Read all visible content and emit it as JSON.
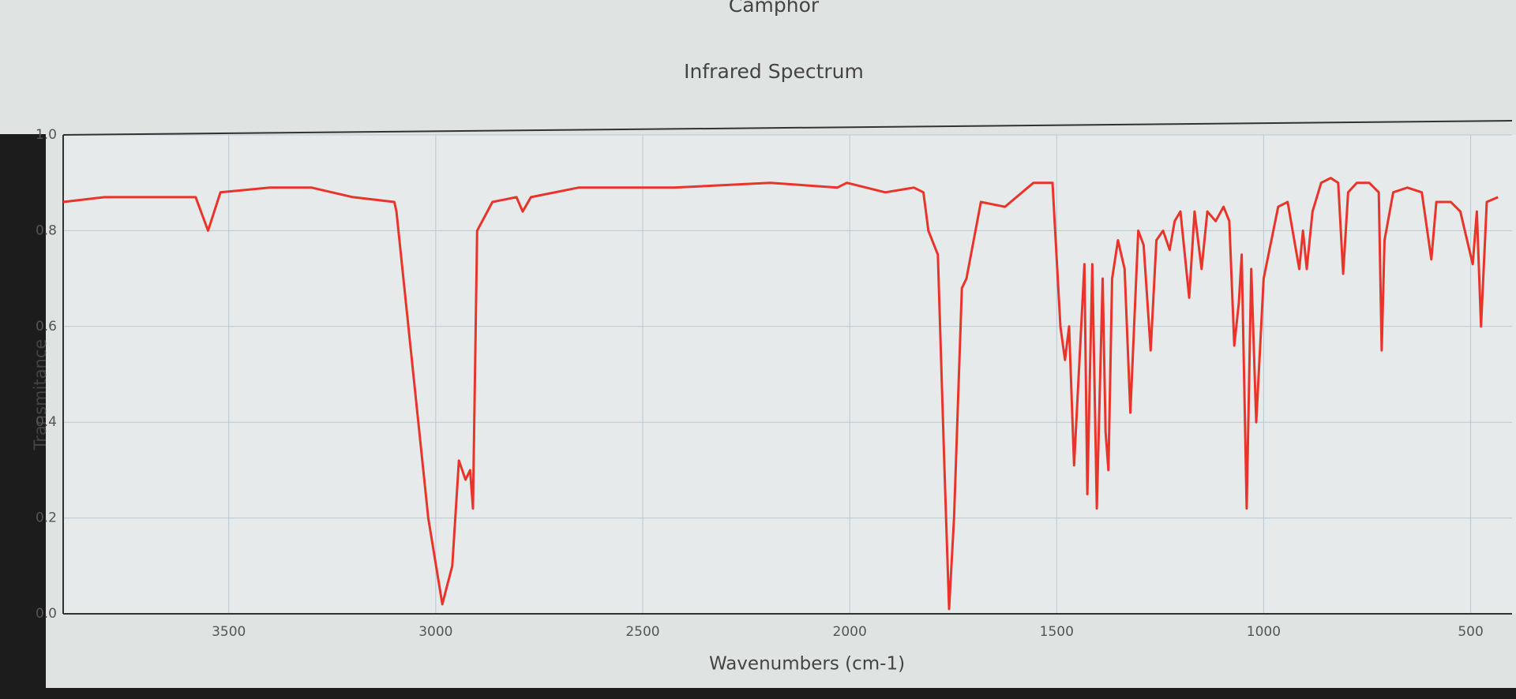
{
  "chart_data": {
    "type": "line",
    "title": "Camphor",
    "subtitle": "Infrared Spectrum",
    "x_label": "Wavenumbers (cm-1)",
    "y_label": "Transmitance",
    "color": "#e8342a",
    "grid": true,
    "xlim": [
      3900,
      400
    ],
    "ylim": [
      0,
      1
    ],
    "xticks": [
      3500,
      3000,
      2500,
      2000,
      1500,
      1000,
      500
    ],
    "yticks": [
      {
        "value": 0,
        "label": "0.0"
      },
      0.2,
      0.4,
      0.6,
      0.8,
      {
        "value": 1,
        "label": "1.0"
      }
    ],
    "x": [
      3900,
      3800,
      3700,
      3600,
      3580,
      3550,
      3520,
      3400,
      3300,
      3200,
      3100,
      3095,
      3018,
      2984,
      2960,
      2944,
      2928,
      2917,
      2910,
      2900,
      2863,
      2805,
      2790,
      2770,
      2655,
      2424,
      2192,
      2030,
      2007,
      1914,
      1845,
      1822,
      1810,
      1787,
      1771,
      1760,
      1748,
      1729,
      1718,
      1683,
      1625,
      1556,
      1510,
      1491,
      1480,
      1470,
      1458,
      1433,
      1426,
      1414,
      1403,
      1389,
      1382,
      1375,
      1366,
      1352,
      1336,
      1322,
      1303,
      1290,
      1273,
      1259,
      1243,
      1227,
      1215,
      1201,
      1180,
      1167,
      1150,
      1136,
      1116,
      1097,
      1083,
      1071,
      1060,
      1053,
      1041,
      1030,
      1018,
      1000,
      965,
      942,
      914,
      905,
      896,
      882,
      861,
      838,
      820,
      808,
      796,
      775,
      745,
      722,
      715,
      708,
      687,
      653,
      618,
      595,
      583,
      548,
      525,
      495,
      485,
      475,
      461,
      434
    ],
    "values": [
      0.86,
      0.87,
      0.87,
      0.87,
      0.87,
      0.8,
      0.88,
      0.89,
      0.89,
      0.87,
      0.86,
      0.84,
      0.2,
      0.02,
      0.1,
      0.32,
      0.28,
      0.3,
      0.22,
      0.8,
      0.86,
      0.87,
      0.84,
      0.87,
      0.89,
      0.89,
      0.9,
      0.89,
      0.9,
      0.88,
      0.89,
      0.88,
      0.8,
      0.75,
      0.3,
      0.01,
      0.2,
      0.68,
      0.7,
      0.86,
      0.85,
      0.9,
      0.9,
      0.6,
      0.53,
      0.6,
      0.31,
      0.73,
      0.25,
      0.73,
      0.22,
      0.7,
      0.38,
      0.3,
      0.7,
      0.78,
      0.72,
      0.42,
      0.8,
      0.77,
      0.55,
      0.78,
      0.8,
      0.76,
      0.82,
      0.84,
      0.66,
      0.84,
      0.72,
      0.84,
      0.82,
      0.85,
      0.82,
      0.56,
      0.65,
      0.75,
      0.22,
      0.72,
      0.4,
      0.7,
      0.85,
      0.86,
      0.72,
      0.8,
      0.72,
      0.84,
      0.9,
      0.91,
      0.9,
      0.71,
      0.88,
      0.9,
      0.9,
      0.88,
      0.55,
      0.78,
      0.88,
      0.89,
      0.88,
      0.74,
      0.86,
      0.86,
      0.84,
      0.73,
      0.84,
      0.6,
      0.86,
      0.87
    ]
  }
}
